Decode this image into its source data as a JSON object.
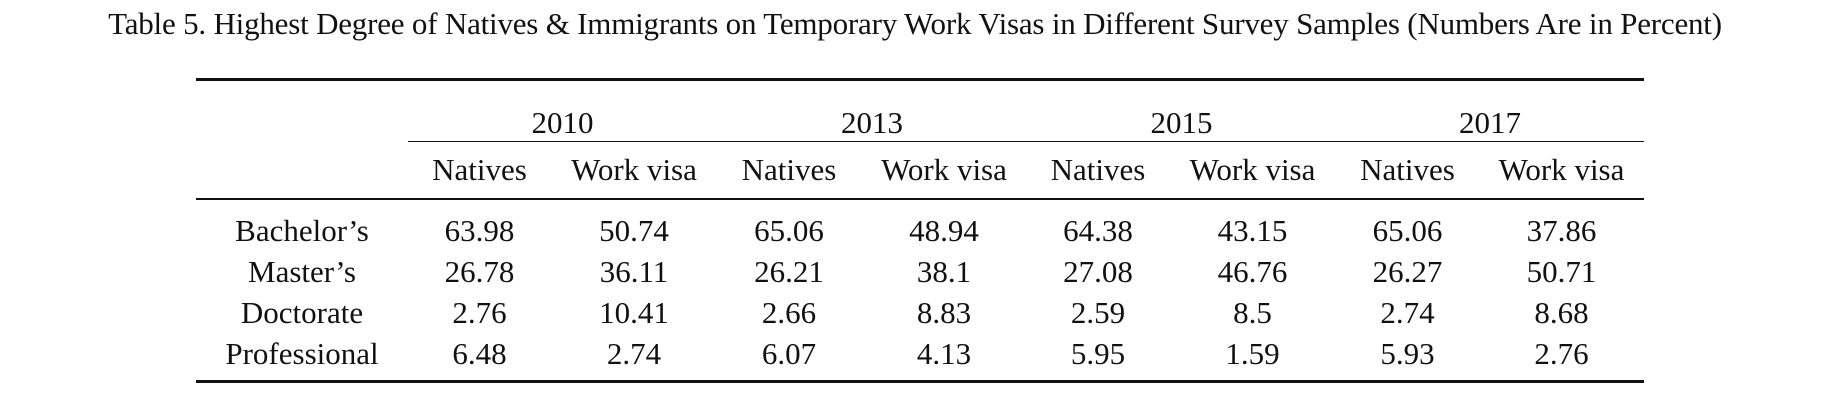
{
  "caption": "Table 5. Highest Degree of Natives & Immigrants on Temporary Work Visas in Different Survey Samples (Numbers Are in Percent)",
  "years": [
    "2010",
    "2013",
    "2015",
    "2017"
  ],
  "subheaders": [
    "Natives",
    "Work visa",
    "Natives",
    "Work visa",
    "Natives",
    "Work visa",
    "Natives",
    "Work visa"
  ],
  "rows": [
    {
      "label": "Bachelor’s",
      "values": [
        "63.98",
        "50.74",
        "65.06",
        "48.94",
        "64.38",
        "43.15",
        "65.06",
        "37.86"
      ]
    },
    {
      "label": "Master’s",
      "values": [
        "26.78",
        "36.11",
        "26.21",
        "38.1",
        "27.08",
        "46.76",
        "26.27",
        "50.71"
      ]
    },
    {
      "label": "Doctorate",
      "values": [
        "2.76",
        "10.41",
        "2.66",
        "8.83",
        "2.59",
        "8.5",
        "2.74",
        "8.68"
      ]
    },
    {
      "label": "Professional",
      "values": [
        "6.48",
        "2.74",
        "6.07",
        "4.13",
        "5.95",
        "1.59",
        "5.93",
        "2.76"
      ]
    }
  ]
}
